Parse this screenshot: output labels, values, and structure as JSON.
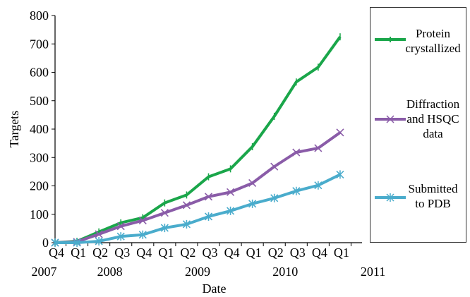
{
  "chart_data": {
    "type": "line",
    "ylabel": "Targets",
    "xlabel": "Date",
    "ylim": [
      0,
      800
    ],
    "yticks": [
      0,
      100,
      200,
      300,
      400,
      500,
      600,
      700,
      800
    ],
    "categories": [
      "Q4",
      "Q1",
      "Q2",
      "Q3",
      "Q4",
      "Q1",
      "Q2",
      "Q3",
      "Q4",
      "Q1",
      "Q2",
      "Q3",
      "Q4",
      "Q1"
    ],
    "years": [
      {
        "label": "2007",
        "at": -0.5
      },
      {
        "label": "2008",
        "at": 2.5
      },
      {
        "label": "2009",
        "at": 6.5
      },
      {
        "label": "2010",
        "at": 10.5
      },
      {
        "label": "2011",
        "at": 14.5
      }
    ],
    "grid": false,
    "legend_position": "right",
    "series": [
      {
        "name": "Protein crystallized",
        "color": "#1aa64a",
        "marker": "dash",
        "values": [
          0,
          5,
          38,
          70,
          88,
          140,
          168,
          232,
          260,
          338,
          445,
          566,
          618,
          725
        ]
      },
      {
        "name": "Diffraction and HSQC data",
        "color": "#8a5ca8",
        "marker": "x",
        "values": [
          0,
          3,
          30,
          58,
          78,
          105,
          132,
          162,
          178,
          210,
          268,
          318,
          333,
          388
        ]
      },
      {
        "name": "Submitted to PDB",
        "color": "#4aaccc",
        "marker": "asterisk",
        "values": [
          0,
          0,
          5,
          22,
          28,
          52,
          65,
          92,
          112,
          137,
          157,
          182,
          202,
          240
        ]
      }
    ]
  },
  "legend": {
    "items": [
      {
        "label": "Protein\ncrystallized"
      },
      {
        "label": "Diffraction\nand HSQC\ndata"
      },
      {
        "label": "Submitted\nto PDB"
      }
    ]
  }
}
